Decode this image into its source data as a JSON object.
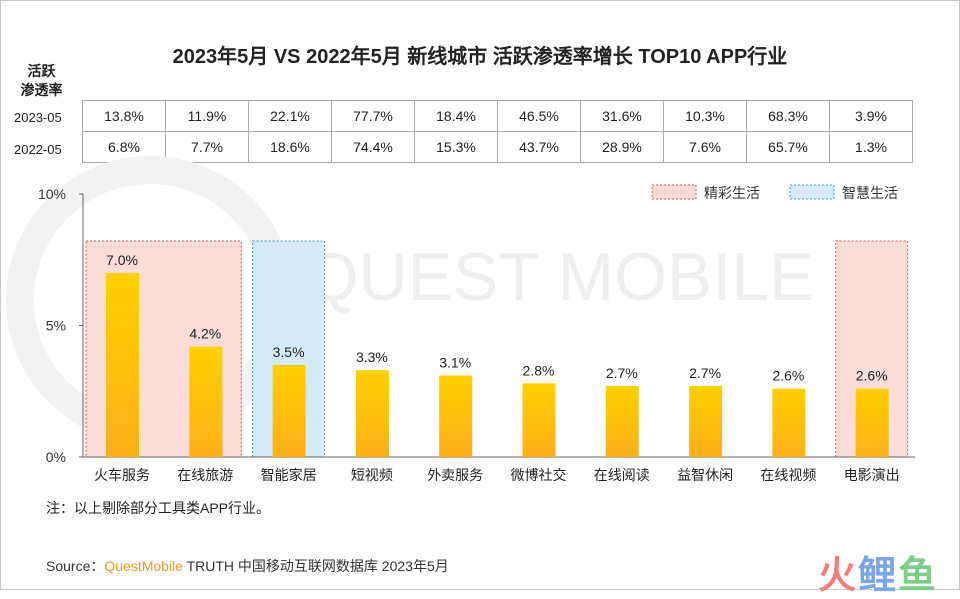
{
  "title": "2023年5月 VS 2022年5月 新线城市 活跃渗透率增长 TOP10 APP行业",
  "table": {
    "header_line1": "活跃",
    "header_line2": "渗透率",
    "rows": [
      {
        "label": "2023-05",
        "values": [
          "13.8%",
          "11.9%",
          "22.1%",
          "77.7%",
          "18.4%",
          "46.5%",
          "31.6%",
          "10.3%",
          "68.3%",
          "3.9%"
        ]
      },
      {
        "label": "2022-05",
        "values": [
          "6.8%",
          "7.7%",
          "18.6%",
          "74.4%",
          "15.3%",
          "43.7%",
          "28.9%",
          "7.6%",
          "65.7%",
          "1.3%"
        ]
      }
    ]
  },
  "chart_data": {
    "type": "bar",
    "title": "2023年5月 VS 2022年5月 新线城市 活跃渗透率增长 TOP10 APP行业",
    "categories": [
      "火车服务",
      "在线旅游",
      "智能家居",
      "短视频",
      "外卖服务",
      "微博社交",
      "在线阅读",
      "益智休闲",
      "在线视频",
      "电影演出"
    ],
    "values": [
      7.0,
      4.2,
      3.5,
      3.3,
      3.1,
      2.8,
      2.7,
      2.7,
      2.6,
      2.6
    ],
    "data_labels": [
      "7.0%",
      "4.2%",
      "3.5%",
      "3.3%",
      "3.1%",
      "2.8%",
      "2.7%",
      "2.7%",
      "2.6%",
      "2.6%"
    ],
    "ylim": [
      0,
      10
    ],
    "yticks": [
      {
        "v": 0,
        "label": "0%"
      },
      {
        "v": 5,
        "label": "5%"
      },
      {
        "v": 10,
        "label": "10%"
      }
    ],
    "groups": [
      {
        "name": "精彩生活",
        "color": "#f9ddd6",
        "border": "#d9534f",
        "categories": [
          "火车服务",
          "在线旅游",
          "电影演出"
        ]
      },
      {
        "name": "智慧生活",
        "color": "#d4ebf7",
        "border": "#3aa0c8",
        "categories": [
          "智能家居"
        ]
      }
    ],
    "legend": "top-right",
    "bar_color": "#fdc20e",
    "grid": false
  },
  "note": "注：以上剔除部分工具类APP行业。",
  "source": {
    "prefix": "Source：",
    "brand": "QuestMobile",
    "rest": " TRUTH 中国移动互联网数据库 2023年5月"
  },
  "watermark": "QUEST MOBILE",
  "logo": "火鲤鱼"
}
